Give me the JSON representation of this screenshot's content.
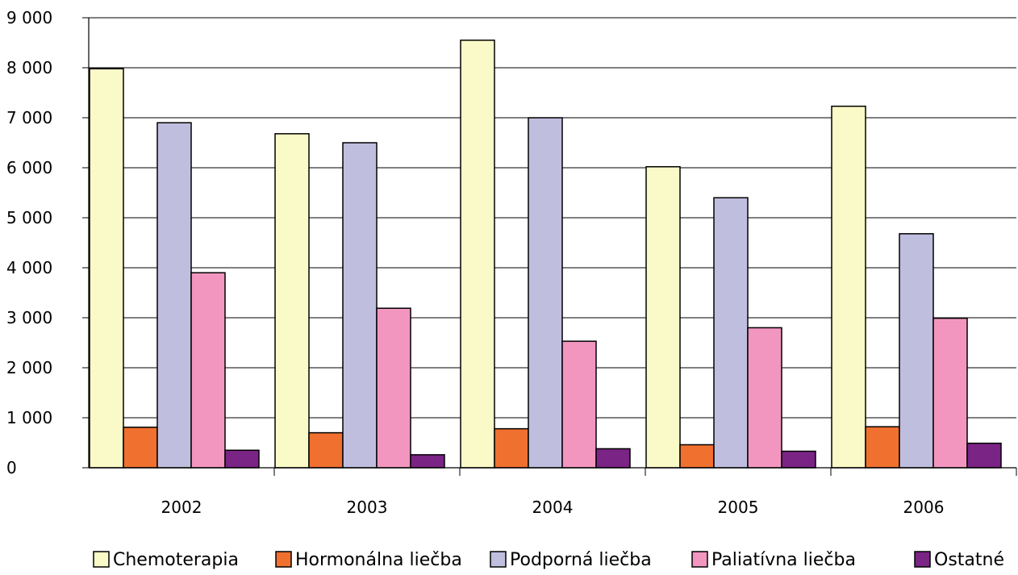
{
  "chart_data": {
    "type": "bar",
    "categories": [
      "2002",
      "2003",
      "2004",
      "2005",
      "2006"
    ],
    "series": [
      {
        "name": "Chemoterapia",
        "color": "#fafac8",
        "values": [
          7980,
          6680,
          8550,
          6020,
          7230
        ]
      },
      {
        "name": "Hormonálna liečba",
        "color": "#f07030",
        "values": [
          810,
          700,
          780,
          460,
          820
        ]
      },
      {
        "name": "Podporná liečba",
        "color": "#c0bedf",
        "values": [
          6900,
          6500,
          7000,
          5400,
          4680
        ]
      },
      {
        "name": "Paliatívna liečba",
        "color": "#f296c0",
        "values": [
          3900,
          3190,
          2530,
          2800,
          2990
        ]
      },
      {
        "name": "Ostatné",
        "color": "#7a2485",
        "values": [
          350,
          260,
          380,
          330,
          490
        ]
      }
    ],
    "y_ticks": [
      "0",
      "1 000",
      "2 000",
      "3 000",
      "4 000",
      "5 000",
      "6 000",
      "7 000",
      "8 000",
      "9 000"
    ],
    "ylim": [
      0,
      9000
    ],
    "grid": true,
    "legend_position": "bottom"
  }
}
